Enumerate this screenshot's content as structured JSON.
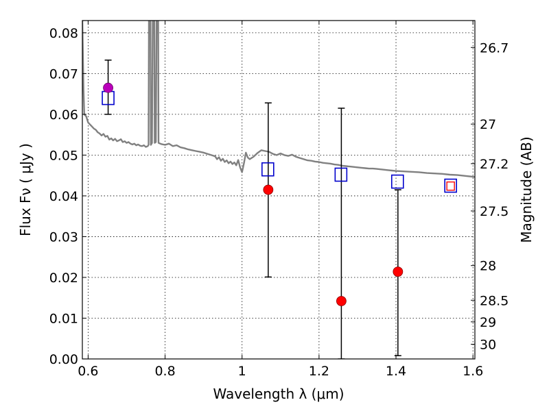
{
  "chart_data": {
    "type": "scatter",
    "xlabel": "Wavelength  λ (μm)",
    "ylabel_left": "Flux  Fν  ( μJy )",
    "ylabel_right": "Magnitude (AB)",
    "xlim": [
      0.585,
      1.605
    ],
    "ylim": [
      0.0,
      0.083
    ],
    "grid": true,
    "x_ticks": [
      0.6,
      0.8,
      1.0,
      1.2,
      1.4,
      1.6
    ],
    "x_tick_labels": [
      "0.6",
      "0.8",
      "1",
      "1.2",
      "1.4",
      "1.6"
    ],
    "y_ticks": [
      0.0,
      0.01,
      0.02,
      0.03,
      0.04,
      0.05,
      0.06,
      0.07,
      0.08
    ],
    "y_tick_labels": [
      "0.00",
      "0.01",
      "0.02",
      "0.03",
      "0.04",
      "0.05",
      "0.06",
      "0.07",
      "0.08"
    ],
    "right_ticks": [
      {
        "label": "26.7",
        "flux": 0.0764
      },
      {
        "label": "27",
        "flux": 0.0576
      },
      {
        "label": "27.2",
        "flux": 0.0479
      },
      {
        "label": "27.5",
        "flux": 0.0363
      },
      {
        "label": "28",
        "flux": 0.0229
      },
      {
        "label": "28.5",
        "flux": 0.0144
      },
      {
        "label": "29",
        "flux": 0.0091
      },
      {
        "label": "30",
        "flux": 0.0036
      }
    ],
    "model_spectrum": {
      "color": "#808080",
      "points": [
        [
          0.585,
          0.083
        ],
        [
          0.588,
          0.066
        ],
        [
          0.59,
          0.06
        ],
        [
          0.595,
          0.0595
        ],
        [
          0.6,
          0.058
        ],
        [
          0.605,
          0.0575
        ],
        [
          0.61,
          0.057
        ],
        [
          0.615,
          0.0565
        ],
        [
          0.62,
          0.0562
        ],
        [
          0.625,
          0.0556
        ],
        [
          0.63,
          0.0553
        ],
        [
          0.635,
          0.0548
        ],
        [
          0.64,
          0.0552
        ],
        [
          0.645,
          0.0545
        ],
        [
          0.65,
          0.0547
        ],
        [
          0.655,
          0.0538
        ],
        [
          0.66,
          0.0541
        ],
        [
          0.665,
          0.0536
        ],
        [
          0.67,
          0.054
        ],
        [
          0.675,
          0.0534
        ],
        [
          0.68,
          0.0536
        ],
        [
          0.685,
          0.0539
        ],
        [
          0.69,
          0.0532
        ],
        [
          0.695,
          0.0534
        ],
        [
          0.7,
          0.053
        ],
        [
          0.705,
          0.0532
        ],
        [
          0.71,
          0.0528
        ],
        [
          0.715,
          0.0526
        ],
        [
          0.72,
          0.0528
        ],
        [
          0.725,
          0.0524
        ],
        [
          0.73,
          0.0526
        ],
        [
          0.735,
          0.0523
        ],
        [
          0.74,
          0.0522
        ],
        [
          0.745,
          0.0524
        ],
        [
          0.75,
          0.052
        ],
        [
          0.755,
          0.0522
        ],
        [
          0.757,
          0.0525
        ],
        [
          0.758,
          0.083
        ],
        [
          0.762,
          0.083
        ],
        [
          0.763,
          0.0525
        ],
        [
          0.766,
          0.053
        ],
        [
          0.768,
          0.083
        ],
        [
          0.772,
          0.083
        ],
        [
          0.773,
          0.053
        ],
        [
          0.776,
          0.0532
        ],
        [
          0.778,
          0.083
        ],
        [
          0.782,
          0.083
        ],
        [
          0.783,
          0.053
        ],
        [
          0.79,
          0.0527
        ],
        [
          0.8,
          0.0525
        ],
        [
          0.81,
          0.0528
        ],
        [
          0.82,
          0.0522
        ],
        [
          0.83,
          0.0524
        ],
        [
          0.84,
          0.0519
        ],
        [
          0.85,
          0.0517
        ],
        [
          0.86,
          0.0514
        ],
        [
          0.87,
          0.0512
        ],
        [
          0.88,
          0.051
        ],
        [
          0.89,
          0.0508
        ],
        [
          0.9,
          0.0506
        ],
        [
          0.91,
          0.0503
        ],
        [
          0.92,
          0.05
        ],
        [
          0.93,
          0.0497
        ],
        [
          0.935,
          0.049
        ],
        [
          0.94,
          0.0495
        ],
        [
          0.945,
          0.0486
        ],
        [
          0.95,
          0.0491
        ],
        [
          0.955,
          0.0483
        ],
        [
          0.96,
          0.0487
        ],
        [
          0.965,
          0.048
        ],
        [
          0.97,
          0.0484
        ],
        [
          0.975,
          0.0478
        ],
        [
          0.98,
          0.0482
        ],
        [
          0.985,
          0.0475
        ],
        [
          0.99,
          0.0488
        ],
        [
          0.995,
          0.047
        ],
        [
          1.0,
          0.0458
        ],
        [
          1.005,
          0.048
        ],
        [
          1.01,
          0.0506
        ],
        [
          1.015,
          0.0494
        ],
        [
          1.02,
          0.049
        ],
        [
          1.03,
          0.0496
        ],
        [
          1.04,
          0.0505
        ],
        [
          1.05,
          0.0512
        ],
        [
          1.06,
          0.051
        ],
        [
          1.07,
          0.0508
        ],
        [
          1.08,
          0.0503
        ],
        [
          1.09,
          0.05
        ],
        [
          1.1,
          0.0504
        ],
        [
          1.11,
          0.05
        ],
        [
          1.12,
          0.0498
        ],
        [
          1.13,
          0.0501
        ],
        [
          1.14,
          0.0496
        ],
        [
          1.15,
          0.0493
        ],
        [
          1.16,
          0.049
        ],
        [
          1.17,
          0.0487
        ],
        [
          1.18,
          0.0486
        ],
        [
          1.19,
          0.0484
        ],
        [
          1.2,
          0.0483
        ],
        [
          1.21,
          0.0481
        ],
        [
          1.22,
          0.048
        ],
        [
          1.23,
          0.0479
        ],
        [
          1.24,
          0.0477
        ],
        [
          1.25,
          0.0476
        ],
        [
          1.26,
          0.0474
        ],
        [
          1.27,
          0.0473
        ],
        [
          1.28,
          0.0472
        ],
        [
          1.29,
          0.0471
        ],
        [
          1.3,
          0.047
        ],
        [
          1.31,
          0.0469
        ],
        [
          1.32,
          0.0468
        ],
        [
          1.33,
          0.0467
        ],
        [
          1.34,
          0.0467
        ],
        [
          1.35,
          0.0466
        ],
        [
          1.36,
          0.0465
        ],
        [
          1.37,
          0.0464
        ],
        [
          1.38,
          0.0463
        ],
        [
          1.39,
          0.0462
        ],
        [
          1.4,
          0.0461
        ],
        [
          1.42,
          0.046
        ],
        [
          1.44,
          0.0459
        ],
        [
          1.46,
          0.0458
        ],
        [
          1.48,
          0.0456
        ],
        [
          1.5,
          0.0455
        ],
        [
          1.52,
          0.0454
        ],
        [
          1.54,
          0.0452
        ],
        [
          1.56,
          0.0451
        ],
        [
          1.58,
          0.0449
        ],
        [
          1.6,
          0.0447
        ],
        [
          1.605,
          0.0446
        ]
      ]
    },
    "observed": {
      "color": "#ff0000",
      "edge_color": "#8b0000",
      "points": [
        {
          "x": 1.068,
          "y": 0.0415,
          "err_low": 0.0201,
          "err_high": 0.0628
        },
        {
          "x": 1.258,
          "y": 0.0142,
          "err_low": 0.0,
          "err_high": 0.0615
        },
        {
          "x": 1.405,
          "y": 0.0214,
          "err_low": 0.0008,
          "err_high": 0.0415
        }
      ]
    },
    "observed_highlight": {
      "color": "#bb00bb",
      "edge_color": "#660066",
      "points": [
        {
          "x": 0.652,
          "y": 0.0665,
          "err_low": 0.06,
          "err_high": 0.0733
        }
      ]
    },
    "model_photometry": {
      "color": "#0000cc",
      "points": [
        {
          "x": 0.652,
          "y": 0.064
        },
        {
          "x": 1.067,
          "y": 0.0465
        },
        {
          "x": 1.257,
          "y": 0.0452
        },
        {
          "x": 1.404,
          "y": 0.0435
        },
        {
          "x": 1.542,
          "y": 0.0425
        }
      ]
    },
    "extra_marker": {
      "x": 1.542,
      "y": 0.0424,
      "color": "#ff0000"
    }
  }
}
